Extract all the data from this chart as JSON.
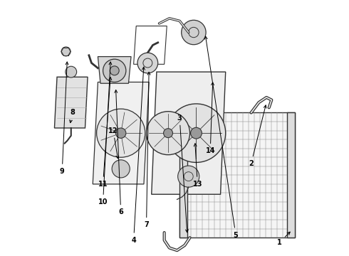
{
  "bg_color": "#ffffff",
  "line_color": "#333333",
  "label_color": "#000000",
  "fig_width": 4.9,
  "fig_height": 3.6,
  "dpi": 100,
  "label_data": [
    [
      1,
      0.91,
      0.05,
      0.96,
      0.1
    ],
    [
      2,
      0.8,
      0.36,
      0.86,
      0.6
    ],
    [
      3,
      0.52,
      0.54,
      0.55,
      0.08
    ],
    [
      4,
      0.34,
      0.06,
      0.38,
      0.75
    ],
    [
      5,
      0.74,
      0.08,
      0.62,
      0.87
    ],
    [
      6,
      0.29,
      0.17,
      0.27,
      0.66
    ],
    [
      7,
      0.39,
      0.12,
      0.4,
      0.73
    ],
    [
      8,
      0.1,
      0.56,
      0.09,
      0.51
    ],
    [
      9,
      0.06,
      0.33,
      0.08,
      0.77
    ],
    [
      10,
      0.22,
      0.21,
      0.25,
      0.77
    ],
    [
      11,
      0.22,
      0.28,
      0.25,
      0.71
    ],
    [
      12,
      0.26,
      0.49,
      0.28,
      0.37
    ],
    [
      13,
      0.59,
      0.28,
      0.58,
      0.45
    ],
    [
      14,
      0.64,
      0.41,
      0.65,
      0.69
    ]
  ]
}
